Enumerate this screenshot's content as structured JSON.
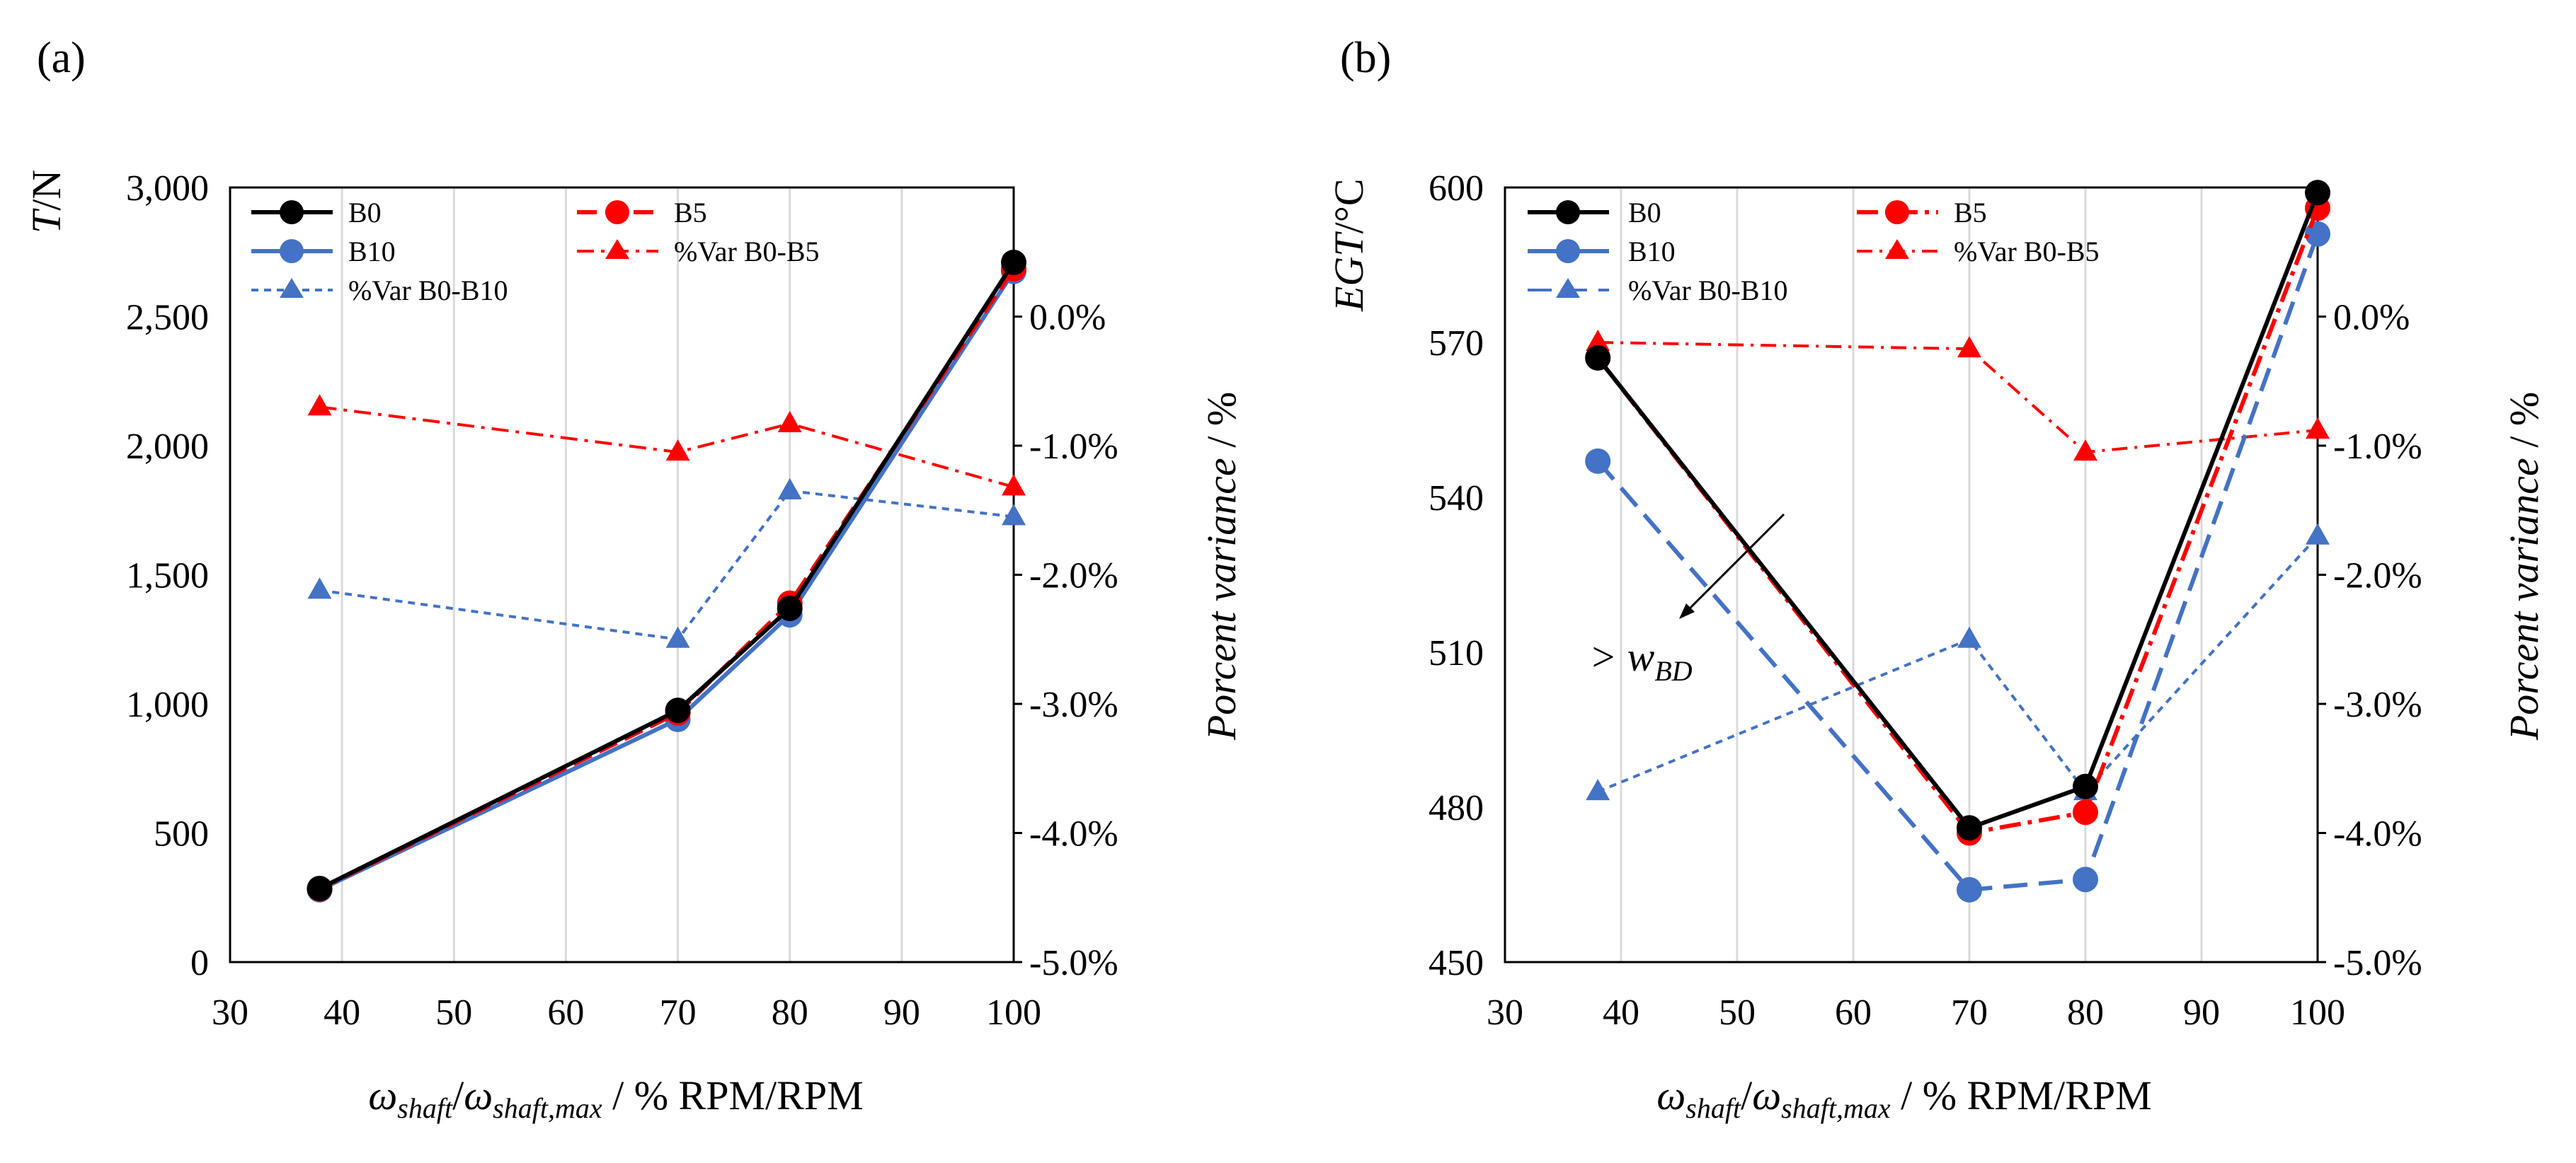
{
  "chart_data": [
    {
      "panel_label": "(a)",
      "type": "line",
      "ylabel_left": {
        "symbol": "T",
        "unit": "/N"
      },
      "ylabel_right": {
        "text": "Porcent variance",
        "unit": " / %"
      },
      "xlabel": {
        "num_base": "ω",
        "num_sub": "shaft",
        "den_base": "ω",
        "den_sub": "shaft,max",
        "unit": " / % RPM/RPM"
      },
      "xlim": [
        30,
        100
      ],
      "xticks": [
        "30",
        "40",
        "50",
        "60",
        "70",
        "80",
        "90",
        "100"
      ],
      "ylim_left": [
        0,
        3000
      ],
      "yticks_left": [
        "0",
        "500",
        "1,000",
        "1,500",
        "2,000",
        "2,500",
        "3,000"
      ],
      "ylim_right": [
        -5.0,
        1.0
      ],
      "yticks_right": [
        "-5.0%",
        "-4.0%",
        "-3.0%",
        "-2.0%",
        "-1.0%",
        "0.0%"
      ],
      "grid": true,
      "legend_position": "top-left",
      "series": [
        {
          "name": "B0",
          "axis": "left",
          "color": "#000000",
          "dash": "",
          "marker": "circle",
          "x": [
            38,
            70,
            80,
            100
          ],
          "y": [
            285,
            975,
            1370,
            2710
          ]
        },
        {
          "name": "B5",
          "axis": "left",
          "color": "#ff0000",
          "dash": "28 12",
          "marker": "circle",
          "x": [
            38,
            70,
            80,
            100
          ],
          "y": [
            283,
            965,
            1390,
            2685
          ]
        },
        {
          "name": "B10",
          "axis": "left",
          "color": "#4472c4",
          "dash": "",
          "marker": "circle",
          "x": [
            38,
            70,
            80,
            100
          ],
          "y": [
            280,
            940,
            1345,
            2675
          ]
        },
        {
          "name": "%Var B0-B5",
          "axis": "right",
          "color": "#ff0000",
          "dash": "24 10 5 10",
          "marker": "triangle",
          "x": [
            38,
            70,
            80,
            100
          ],
          "y": [
            -0.7,
            -1.05,
            -0.83,
            -1.32
          ]
        },
        {
          "name": "%Var B0-B10",
          "axis": "right",
          "color": "#4472c4",
          "dash": "10 8",
          "marker": "triangle",
          "x": [
            38,
            70,
            80,
            100
          ],
          "y": [
            -2.12,
            -2.5,
            -1.35,
            -1.55
          ]
        }
      ]
    },
    {
      "panel_label": "(b)",
      "type": "line",
      "ylabel_left": {
        "symbol": "EGT",
        "unit": "/°C"
      },
      "ylabel_right": {
        "text": "Porcent variance",
        "unit": " / %"
      },
      "xlabel": {
        "num_base": "ω",
        "num_sub": "shaft",
        "den_base": "ω",
        "den_sub": "shaft,max",
        "unit": " / % RPM/RPM"
      },
      "xlim": [
        30,
        100
      ],
      "xticks": [
        "30",
        "40",
        "50",
        "60",
        "70",
        "80",
        "90",
        "100"
      ],
      "ylim_left": [
        450,
        600
      ],
      "yticks_left": [
        "450",
        "480",
        "510",
        "540",
        "570",
        "600"
      ],
      "ylim_right": [
        -5.0,
        1.0
      ],
      "yticks_right": [
        "-5.0%",
        "-4.0%",
        "-3.0%",
        "-2.0%",
        "-1.0%",
        "0.0%"
      ],
      "grid": true,
      "legend_position": "top-left",
      "annotation": {
        "text": "> w",
        "sub": "BD"
      },
      "series": [
        {
          "name": "B0",
          "axis": "left",
          "color": "#000000",
          "dash": "",
          "marker": "circle",
          "x": [
            38,
            70,
            80,
            100
          ],
          "y": [
            567,
            476,
            484,
            599
          ]
        },
        {
          "name": "B5",
          "axis": "left",
          "color": "#ff0000",
          "dash": "30 10 6 10",
          "marker": "circle",
          "x": [
            38,
            70,
            80,
            100
          ],
          "y": [
            567,
            475,
            479,
            596
          ]
        },
        {
          "name": "B10",
          "axis": "left",
          "color": "#4472c4",
          "dash": "34 16",
          "marker": "circle",
          "x": [
            38,
            70,
            80,
            100
          ],
          "y": [
            547,
            464,
            466,
            591
          ]
        },
        {
          "name": "%Var B0-B5",
          "axis": "right",
          "color": "#ff0000",
          "dash": "22 10 4 10",
          "marker": "triangle",
          "x": [
            38,
            70,
            80,
            100
          ],
          "y": [
            -0.2,
            -0.25,
            -1.05,
            -0.88
          ]
        },
        {
          "name": "%Var B0-B10",
          "axis": "right",
          "color": "#4472c4",
          "dash": "10 8",
          "marker": "triangle",
          "x": [
            38,
            70,
            80,
            100
          ],
          "y": [
            -3.68,
            -2.5,
            -3.68,
            -1.7
          ]
        }
      ]
    }
  ]
}
